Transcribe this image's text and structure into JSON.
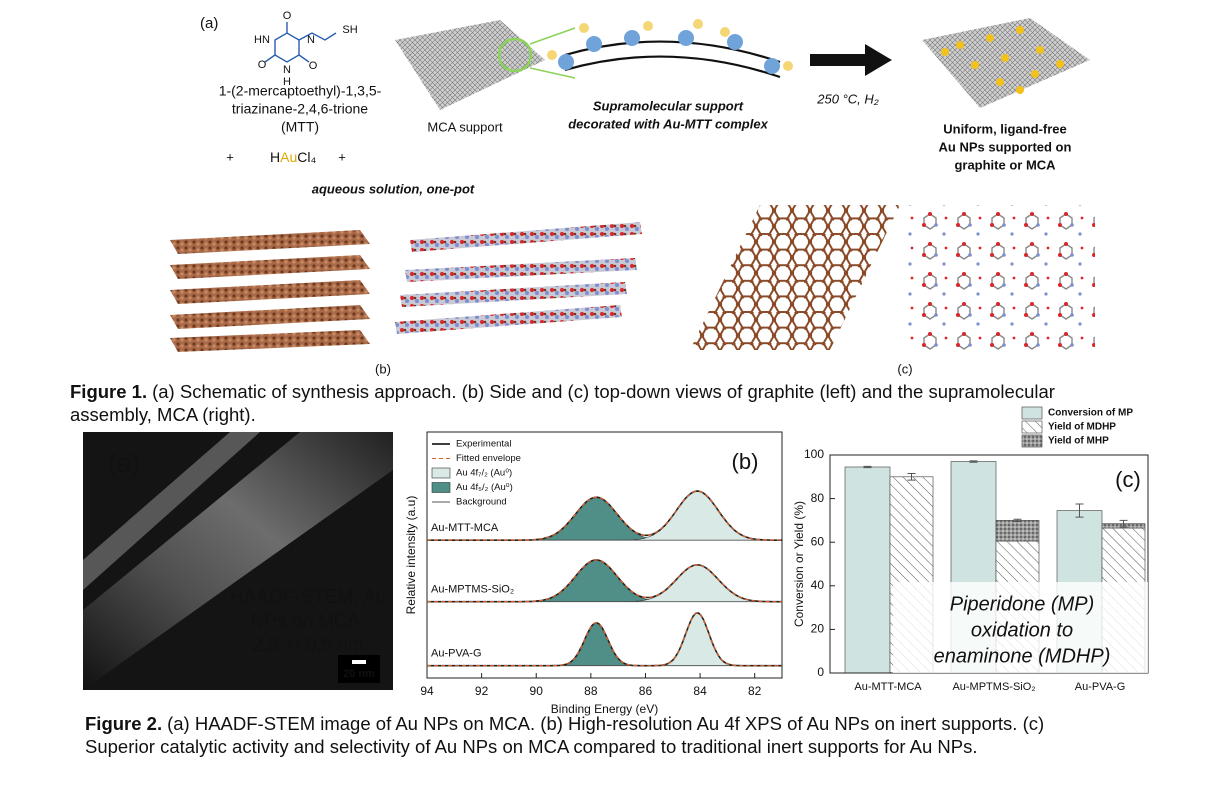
{
  "figure1": {
    "panel_a": {
      "label": "(a)",
      "atoms": [
        "O",
        "HN",
        "N",
        "SH",
        "O",
        "N",
        "O",
        "H"
      ],
      "molecule_name": [
        "1-(2-mercaptoethyl)-1,3,5-",
        "triazinane-2,4,6-trione",
        "(MTT)"
      ],
      "plus": "+",
      "reagent": [
        "H",
        "Au",
        "Cl₄"
      ],
      "solution": "aqueous solution, one-pot",
      "support": "MCA support",
      "decorated": [
        "Supramolecular support",
        "decorated with Au-MTT complex"
      ],
      "conditions": "250 °C, H₂",
      "product": [
        "Uniform, ligand-free",
        "Au NPs supported on",
        "graphite or MCA"
      ]
    },
    "panel_b": "(b)",
    "panel_c": "(c)",
    "caption": {
      "label": "Figure 1.",
      "lines": [
        "(a) Schematic of synthesis approach. (b) Side and (c) top-down views of graphite (left) and the supramolecular",
        "assembly, MCA (right)."
      ]
    }
  },
  "figure2": {
    "panel_a": {
      "label": "(a)",
      "text": [
        "HAADF-STEM, Au",
        "NPs on MCA:",
        "2.5 +/ 0.5 nm"
      ],
      "scale_bar": "20 nm"
    },
    "caption": {
      "label": "Figure 2.",
      "lines": [
        "(a) HAADF-STEM image of Au NPs on MCA. (b) High-resolution Au 4f XPS of Au NPs on inert supports. (c)",
        "Superior catalytic activity and selectivity of Au NPs on MCA compared to traditional inert supports for Au NPs."
      ]
    }
  },
  "chart_data": [
    {
      "type": "line",
      "panel": "(b)",
      "xlabel": "Binding Energy (eV)",
      "ylabel": "Relative intensity (a.u)",
      "xlim": [
        94,
        81
      ],
      "xticks": [
        94,
        92,
        90,
        88,
        86,
        84,
        82
      ],
      "ylim": [
        0,
        100
      ],
      "legend": [
        {
          "name": "Experimental",
          "color": "#222222"
        },
        {
          "name": "Fitted envelope",
          "color": "#e0622a"
        },
        {
          "name": "Au 4f₇/₂ (Au⁰)",
          "color": "#d8e9e6"
        },
        {
          "name": "Au 4f₅/₂ (Au⁰)",
          "color": "#4f8f88"
        },
        {
          "name": "Background",
          "color": "#555555"
        }
      ],
      "spectra": [
        {
          "name": "Au-MTT-MCA",
          "baseline": 56,
          "centers": [
            87.8,
            84.1
          ],
          "heights": [
            17.5,
            20
          ],
          "fwhm": [
            1.8,
            1.8
          ]
        },
        {
          "name": "Au-MPTMS-SiO₂",
          "baseline": 31,
          "centers": [
            87.8,
            84.1
          ],
          "heights": [
            17,
            15
          ],
          "fwhm": [
            1.8,
            1.8
          ]
        },
        {
          "name": "Au-PVA-G",
          "baseline": 5,
          "centers": [
            87.8,
            84.1
          ],
          "heights": [
            17.5,
            21.5
          ],
          "fwhm": [
            1.0,
            1.0
          ]
        }
      ]
    },
    {
      "type": "bar",
      "panel": "(c)",
      "ylabel": "Conversion or Yield (%)",
      "categories": [
        "Au-MTT-MCA",
        "Au-MPTMS-SiO₂",
        "Au-PVA-G"
      ],
      "ylim": [
        0,
        100
      ],
      "yticks": [
        0,
        20,
        40,
        60,
        80,
        100
      ],
      "series": [
        {
          "name": "Conversion of MP",
          "color": "#cfe3e0",
          "values": [
            94.5,
            97,
            74.5
          ],
          "errors": [
            0.3,
            0.3,
            3
          ]
        },
        {
          "name": "Yield of MDHP",
          "color": "#ffffff",
          "values": [
            90,
            60.5,
            66.5
          ],
          "errors": [
            1.5,
            null,
            null
          ]
        },
        {
          "name": "Yield of MHP",
          "color": "#8a8a8a",
          "values": [
            0,
            9.5,
            2
          ],
          "errors": [
            null,
            0.5,
            1.5
          ]
        }
      ],
      "annotation": [
        "Piperidone (MP)",
        "oxidation to",
        "enaminone (MDHP)"
      ]
    }
  ]
}
